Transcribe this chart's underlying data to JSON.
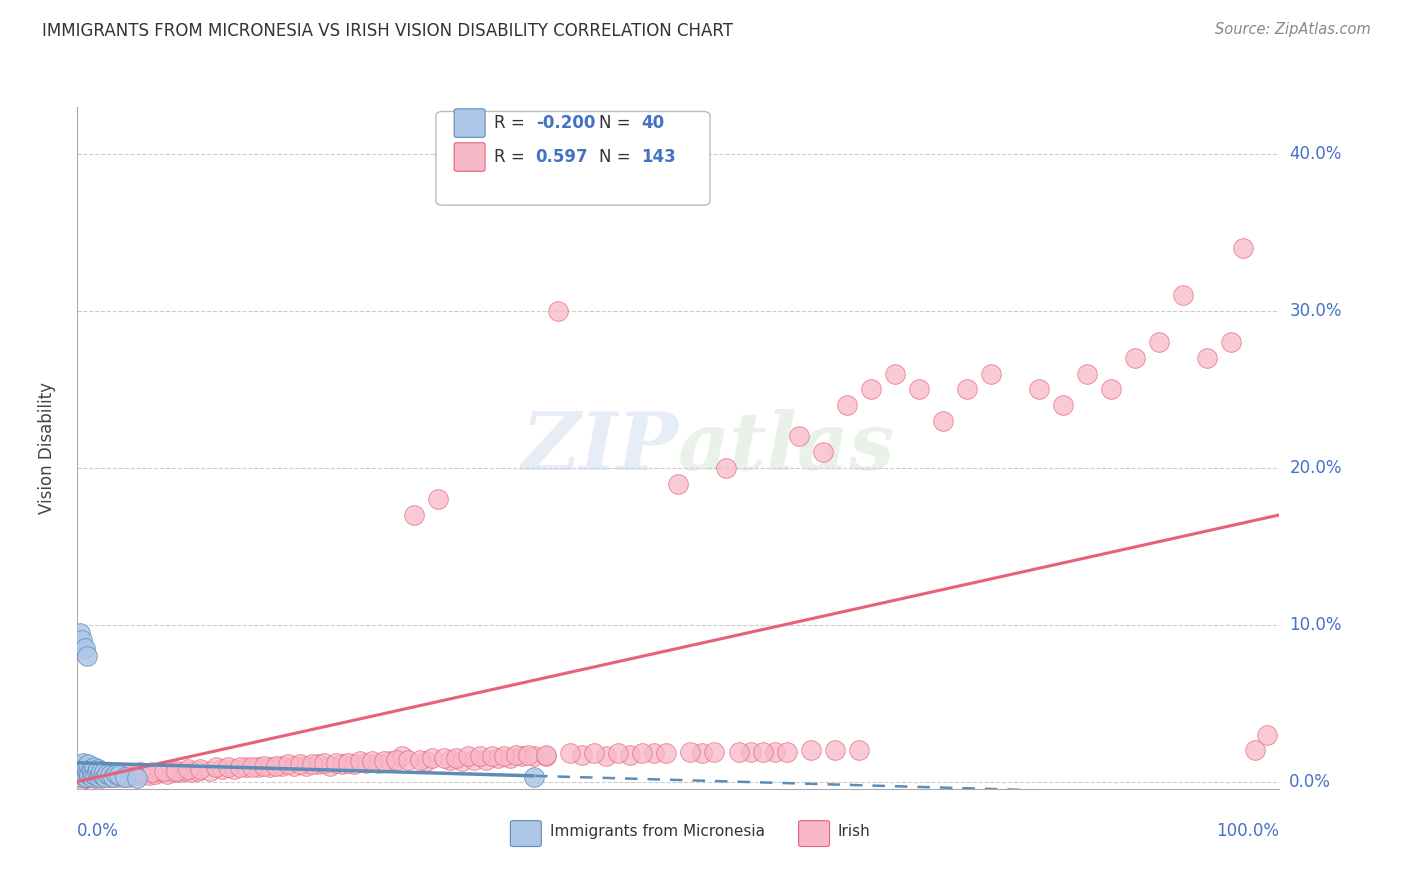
{
  "title": "IMMIGRANTS FROM MICRONESIA VS IRISH VISION DISABILITY CORRELATION CHART",
  "source": "Source: ZipAtlas.com",
  "ylabel": "Vision Disability",
  "ytick_labels": [
    "0.0%",
    "10.0%",
    "20.0%",
    "30.0%",
    "40.0%"
  ],
  "ytick_values": [
    0.0,
    0.1,
    0.2,
    0.3,
    0.4
  ],
  "xlim": [
    0.0,
    1.0
  ],
  "ylim": [
    -0.005,
    0.43
  ],
  "blue_color": "#aec6e8",
  "pink_color": "#f7b8c8",
  "blue_line_color": "#5b8db8",
  "pink_line_color": "#e8607a",
  "watermark": "ZIPatlas",
  "blue_r": -0.2,
  "blue_n": 40,
  "pink_r": 0.597,
  "pink_n": 143,
  "blue_line_x0": 0.0,
  "blue_line_y0": 0.012,
  "blue_line_x1": 1.0,
  "blue_line_y1": -0.01,
  "blue_solid_cutoff": 0.38,
  "pink_line_x0": 0.0,
  "pink_line_y0": 0.0,
  "pink_line_x1": 1.0,
  "pink_line_y1": 0.17,
  "blue_scatter_x": [
    0.001,
    0.002,
    0.002,
    0.003,
    0.003,
    0.004,
    0.004,
    0.005,
    0.005,
    0.006,
    0.006,
    0.007,
    0.007,
    0.008,
    0.008,
    0.009,
    0.009,
    0.01,
    0.011,
    0.012,
    0.012,
    0.013,
    0.014,
    0.015,
    0.016,
    0.017,
    0.018,
    0.019,
    0.02,
    0.021,
    0.022,
    0.023,
    0.025,
    0.027,
    0.03,
    0.032,
    0.035,
    0.04,
    0.05,
    0.38
  ],
  "blue_scatter_y": [
    0.005,
    0.008,
    0.095,
    0.003,
    0.01,
    0.007,
    0.09,
    0.012,
    0.004,
    0.006,
    0.085,
    0.009,
    0.003,
    0.007,
    0.08,
    0.005,
    0.011,
    0.004,
    0.008,
    0.003,
    0.007,
    0.005,
    0.009,
    0.004,
    0.006,
    0.008,
    0.003,
    0.005,
    0.007,
    0.004,
    0.006,
    0.003,
    0.005,
    0.004,
    0.003,
    0.005,
    0.004,
    0.003,
    0.002,
    0.003
  ],
  "pink_scatter_x": [
    0.003,
    0.005,
    0.007,
    0.01,
    0.012,
    0.015,
    0.018,
    0.02,
    0.022,
    0.025,
    0.028,
    0.03,
    0.033,
    0.035,
    0.038,
    0.04,
    0.043,
    0.045,
    0.048,
    0.05,
    0.055,
    0.06,
    0.065,
    0.07,
    0.075,
    0.08,
    0.085,
    0.09,
    0.095,
    0.1,
    0.11,
    0.12,
    0.13,
    0.14,
    0.15,
    0.16,
    0.17,
    0.18,
    0.19,
    0.2,
    0.21,
    0.22,
    0.23,
    0.24,
    0.25,
    0.26,
    0.27,
    0.28,
    0.29,
    0.3,
    0.31,
    0.32,
    0.33,
    0.34,
    0.35,
    0.36,
    0.37,
    0.38,
    0.39,
    0.4,
    0.42,
    0.44,
    0.46,
    0.48,
    0.5,
    0.52,
    0.54,
    0.56,
    0.58,
    0.6,
    0.62,
    0.64,
    0.66,
    0.68,
    0.7,
    0.72,
    0.74,
    0.76,
    0.8,
    0.82,
    0.84,
    0.86,
    0.88,
    0.9,
    0.92,
    0.94,
    0.96,
    0.97,
    0.98,
    0.99,
    0.002,
    0.008,
    0.016,
    0.025,
    0.032,
    0.042,
    0.052,
    0.062,
    0.072,
    0.082,
    0.092,
    0.102,
    0.115,
    0.125,
    0.135,
    0.145,
    0.155,
    0.165,
    0.175,
    0.185,
    0.195,
    0.205,
    0.215,
    0.225,
    0.235,
    0.245,
    0.255,
    0.265,
    0.275,
    0.285,
    0.295,
    0.305,
    0.315,
    0.325,
    0.335,
    0.345,
    0.355,
    0.365,
    0.375,
    0.39,
    0.41,
    0.43,
    0.45,
    0.47,
    0.49,
    0.51,
    0.53,
    0.55,
    0.57,
    0.59,
    0.61,
    0.63,
    0.65
  ],
  "pink_scatter_y": [
    0.001,
    0.002,
    0.002,
    0.003,
    0.003,
    0.002,
    0.003,
    0.002,
    0.004,
    0.003,
    0.003,
    0.004,
    0.003,
    0.004,
    0.003,
    0.004,
    0.003,
    0.005,
    0.004,
    0.004,
    0.005,
    0.004,
    0.005,
    0.006,
    0.005,
    0.006,
    0.006,
    0.007,
    0.006,
    0.007,
    0.007,
    0.008,
    0.008,
    0.009,
    0.009,
    0.009,
    0.01,
    0.01,
    0.01,
    0.011,
    0.01,
    0.011,
    0.011,
    0.012,
    0.012,
    0.013,
    0.016,
    0.17,
    0.013,
    0.18,
    0.014,
    0.013,
    0.014,
    0.014,
    0.015,
    0.015,
    0.016,
    0.016,
    0.016,
    0.3,
    0.017,
    0.016,
    0.017,
    0.018,
    0.19,
    0.018,
    0.2,
    0.019,
    0.019,
    0.22,
    0.21,
    0.24,
    0.25,
    0.26,
    0.25,
    0.23,
    0.25,
    0.26,
    0.25,
    0.24,
    0.26,
    0.25,
    0.27,
    0.28,
    0.31,
    0.27,
    0.28,
    0.34,
    0.02,
    0.03,
    0.001,
    0.003,
    0.004,
    0.004,
    0.005,
    0.005,
    0.006,
    0.006,
    0.007,
    0.007,
    0.008,
    0.008,
    0.009,
    0.009,
    0.009,
    0.009,
    0.01,
    0.01,
    0.011,
    0.011,
    0.011,
    0.012,
    0.012,
    0.012,
    0.013,
    0.013,
    0.013,
    0.014,
    0.014,
    0.014,
    0.015,
    0.015,
    0.015,
    0.016,
    0.016,
    0.016,
    0.016,
    0.017,
    0.017,
    0.017,
    0.018,
    0.018,
    0.018,
    0.018,
    0.018,
    0.019,
    0.019,
    0.019,
    0.019,
    0.019,
    0.02,
    0.02,
    0.02
  ]
}
